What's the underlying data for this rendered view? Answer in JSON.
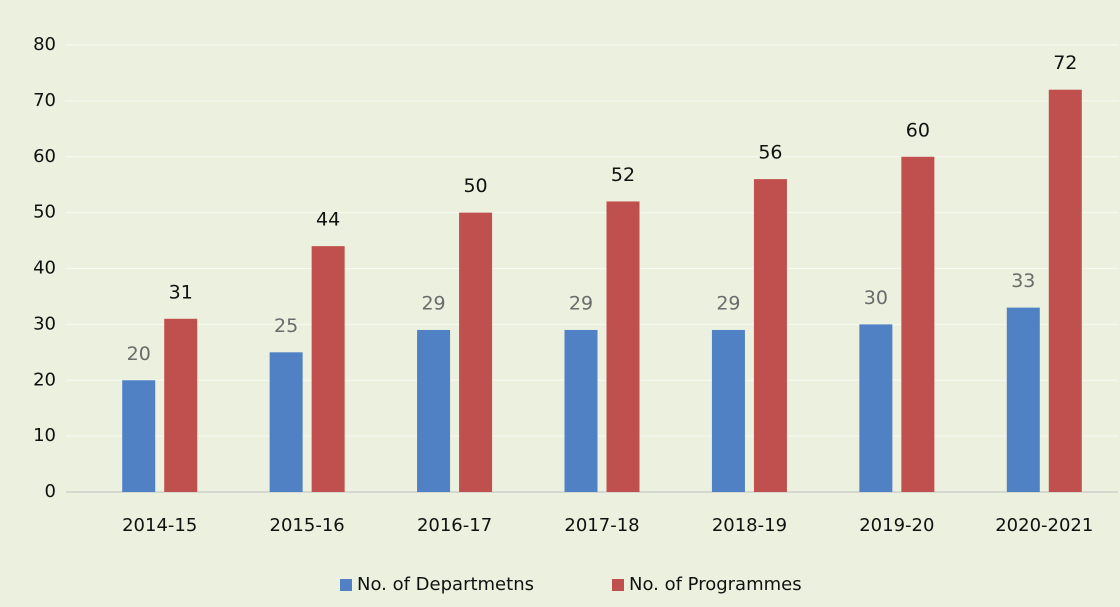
{
  "chart_data": {
    "type": "bar",
    "categories": [
      "2014-15",
      "2015-16",
      "2016-17",
      "2017-18",
      "2018-19",
      "2019-20",
      "2020-2021"
    ],
    "series": [
      {
        "name": "No. of Departmetns",
        "color": "#4f81c4",
        "values": [
          20,
          25,
          29,
          29,
          29,
          30,
          33
        ]
      },
      {
        "name": "No. of Programmes",
        "color": "#c0504d",
        "values": [
          31,
          44,
          50,
          52,
          56,
          60,
          72
        ]
      }
    ],
    "ylim": [
      0,
      80
    ],
    "yticks": [
      0,
      10,
      20,
      30,
      40,
      50,
      60,
      70,
      80
    ],
    "grid": true,
    "legend": "bottom"
  }
}
